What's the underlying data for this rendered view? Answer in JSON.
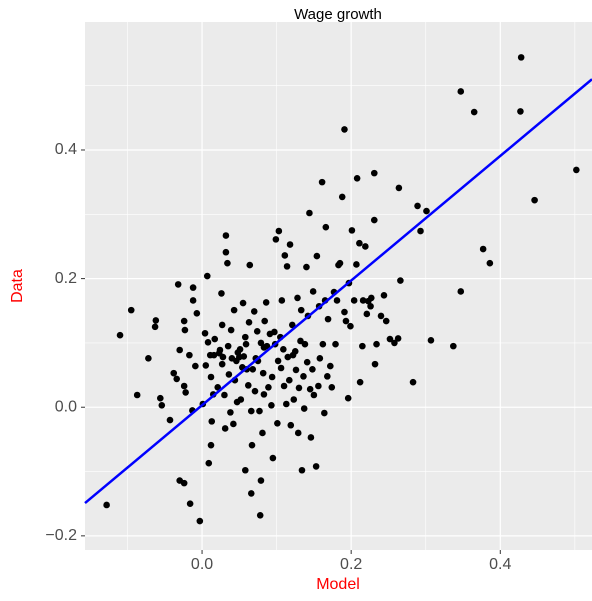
{
  "chart_data": {
    "type": "scatter",
    "title": "Wage growth",
    "x_label": "Model",
    "y_label": "Data",
    "axis_label_color": "#ff0000",
    "background": "#ebebeb",
    "grid": true,
    "xlim": [
      -0.157,
      0.523
    ],
    "ylim": [
      -0.222,
      0.599
    ],
    "xticks": [
      {
        "value": 0,
        "label": "0.0"
      },
      {
        "value": 0.2,
        "label": "0.2"
      },
      {
        "value": 0.4,
        "label": "0.4"
      }
    ],
    "yticks": [
      {
        "value": -0.2,
        "label": "−0.2"
      },
      {
        "value": 0,
        "label": "0.0"
      },
      {
        "value": 0.2,
        "label": "0.2"
      },
      {
        "value": 0.4,
        "label": "0.4"
      }
    ],
    "point_color": "#000000",
    "x": [
      -0.128,
      -0.11,
      -0.095,
      -0.087,
      -0.072,
      -0.062,
      -0.063,
      -0.056,
      -0.054,
      -0.043,
      -0.038,
      -0.032,
      -0.034,
      -0.03,
      -0.03,
      -0.024,
      -0.024,
      -0.024,
      -0.023,
      -0.022,
      -0.017,
      -0.016,
      -0.012,
      -0.012,
      -0.013,
      -0.009,
      -0.007,
      -0.003,
      0.001,
      0.004,
      0.005,
      0.007,
      0.008,
      0.009,
      0.011,
      0.012,
      0.012,
      0.013,
      0.015,
      0.016,
      0.017,
      0.021,
      0.023,
      0.024,
      0.026,
      0.027,
      0.027,
      0.028,
      0.03,
      0.031,
      0.032,
      0.032,
      0.034,
      0.035,
      0.036,
      0.038,
      0.039,
      0.04,
      0.042,
      0.043,
      0.044,
      0.046,
      0.047,
      0.048,
      0.05,
      0.051,
      0.052,
      0.054,
      0.055,
      0.056,
      0.058,
      0.058,
      0.059,
      0.06,
      0.062,
      0.063,
      0.064,
      0.066,
      0.066,
      0.067,
      0.068,
      0.07,
      0.071,
      0.072,
      0.074,
      0.075,
      0.077,
      0.078,
      0.079,
      0.079,
      0.081,
      0.082,
      0.083,
      0.083,
      0.084,
      0.086,
      0.087,
      0.089,
      0.091,
      0.093,
      0.094,
      0.095,
      0.097,
      0.098,
      0.099,
      0.101,
      0.102,
      0.103,
      0.105,
      0.106,
      0.107,
      0.109,
      0.11,
      0.111,
      0.113,
      0.114,
      0.115,
      0.117,
      0.118,
      0.119,
      0.121,
      0.122,
      0.123,
      0.125,
      0.126,
      0.128,
      0.129,
      0.13,
      0.132,
      0.133,
      0.134,
      0.136,
      0.137,
      0.138,
      0.14,
      0.141,
      0.142,
      0.144,
      0.145,
      0.146,
      0.148,
      0.149,
      0.15,
      0.153,
      0.154,
      0.156,
      0.157,
      0.158,
      0.161,
      0.162,
      0.164,
      0.165,
      0.166,
      0.168,
      0.169,
      0.172,
      0.174,
      0.177,
      0.179,
      0.181,
      0.183,
      0.185,
      0.188,
      0.191,
      0.191,
      0.193,
      0.196,
      0.197,
      0.199,
      0.201,
      0.204,
      0.207,
      0.208,
      0.211,
      0.212,
      0.215,
      0.216,
      0.219,
      0.221,
      0.223,
      0.226,
      0.227,
      0.231,
      0.231,
      0.232,
      0.234,
      0.24,
      0.244,
      0.247,
      0.252,
      0.258,
      0.263,
      0.264,
      0.266,
      0.283,
      0.289,
      0.293,
      0.301,
      0.307,
      0.337,
      0.347,
      0.347,
      0.365,
      0.377,
      0.386,
      0.427,
      0.428,
      0.446,
      0.502
    ],
    "y": [
      -0.152,
      0.112,
      0.151,
      0.019,
      0.076,
      0.135,
      0.125,
      0.014,
      0.003,
      -0.02,
      0.053,
      0.191,
      0.044,
      0.089,
      -0.114,
      -0.118,
      0.134,
      0.033,
      0.12,
      0.023,
      0.081,
      -0.15,
      0.186,
      0.166,
      -0.005,
      0.064,
      0.146,
      -0.177,
      0.005,
      0.115,
      0.065,
      0.204,
      0.101,
      -0.087,
      0.081,
      0.047,
      -0.059,
      -0.022,
      0.02,
      0.081,
      0.106,
      0.031,
      0.084,
      0.089,
      0.177,
      0.128,
      0.067,
      0.078,
      0.019,
      -0.033,
      0.267,
      0.241,
      0.224,
      0.095,
      0.051,
      -0.008,
      0.12,
      0.076,
      -0.026,
      0.151,
      0.042,
      0.072,
      0.008,
      0.085,
      0.078,
      0.09,
      0.012,
      0.062,
      0.162,
      0.079,
      -0.098,
      0.109,
      0.098,
      0.059,
      0.034,
      0.132,
      0.221,
      -0.006,
      -0.134,
      -0.059,
      0.059,
      0.149,
      0.025,
      0.076,
      0.118,
      0.072,
      -0.006,
      -0.168,
      -0.114,
      0.1,
      -0.04,
      0.053,
      0.02,
      0.093,
      0.134,
      0.163,
      0.095,
      0.031,
      0.114,
      0.003,
      0.047,
      -0.079,
      0.117,
      0.098,
      0.261,
      -0.025,
      0.072,
      0.274,
      0.109,
      0.061,
      0.166,
      0.09,
      0.033,
      0.236,
      0.005,
      0.219,
      0.078,
      0.042,
      0.253,
      -0.028,
      0.128,
      0.081,
      0.012,
      0.087,
      0.058,
      0.17,
      -0.04,
      0.03,
      0.103,
      0.151,
      -0.098,
      0.048,
      -0.002,
      0.098,
      0.218,
      0.07,
      0.142,
      0.302,
      0.028,
      -0.047,
      0.059,
      0.18,
      0.019,
      -0.092,
      0.235,
      0.033,
      0.157,
      0.076,
      0.35,
      0.098,
      -0.009,
      0.166,
      0.28,
      0.048,
      0.137,
      0.064,
      0.031,
      0.179,
      0.098,
      0.166,
      0.221,
      0.224,
      0.327,
      0.432,
      0.148,
      0.134,
      0.014,
      0.193,
      0.126,
      0.275,
      0.166,
      0.222,
      0.356,
      0.255,
      0.039,
      0.095,
      0.166,
      0.25,
      0.145,
      0.165,
      0.157,
      0.17,
      0.364,
      0.291,
      0.067,
      0.098,
      0.142,
      0.174,
      0.134,
      0.106,
      0.1,
      0.107,
      0.341,
      0.197,
      0.039,
      0.313,
      0.274,
      0.305,
      0.104,
      0.095,
      0.18,
      0.491,
      0.459,
      0.246,
      0.224,
      0.46,
      0.544,
      0.322,
      0.369
    ],
    "fit": {
      "color": "#0000ff",
      "x": [
        -0.157,
        0.523
      ],
      "y": [
        -0.149,
        0.51
      ]
    }
  }
}
